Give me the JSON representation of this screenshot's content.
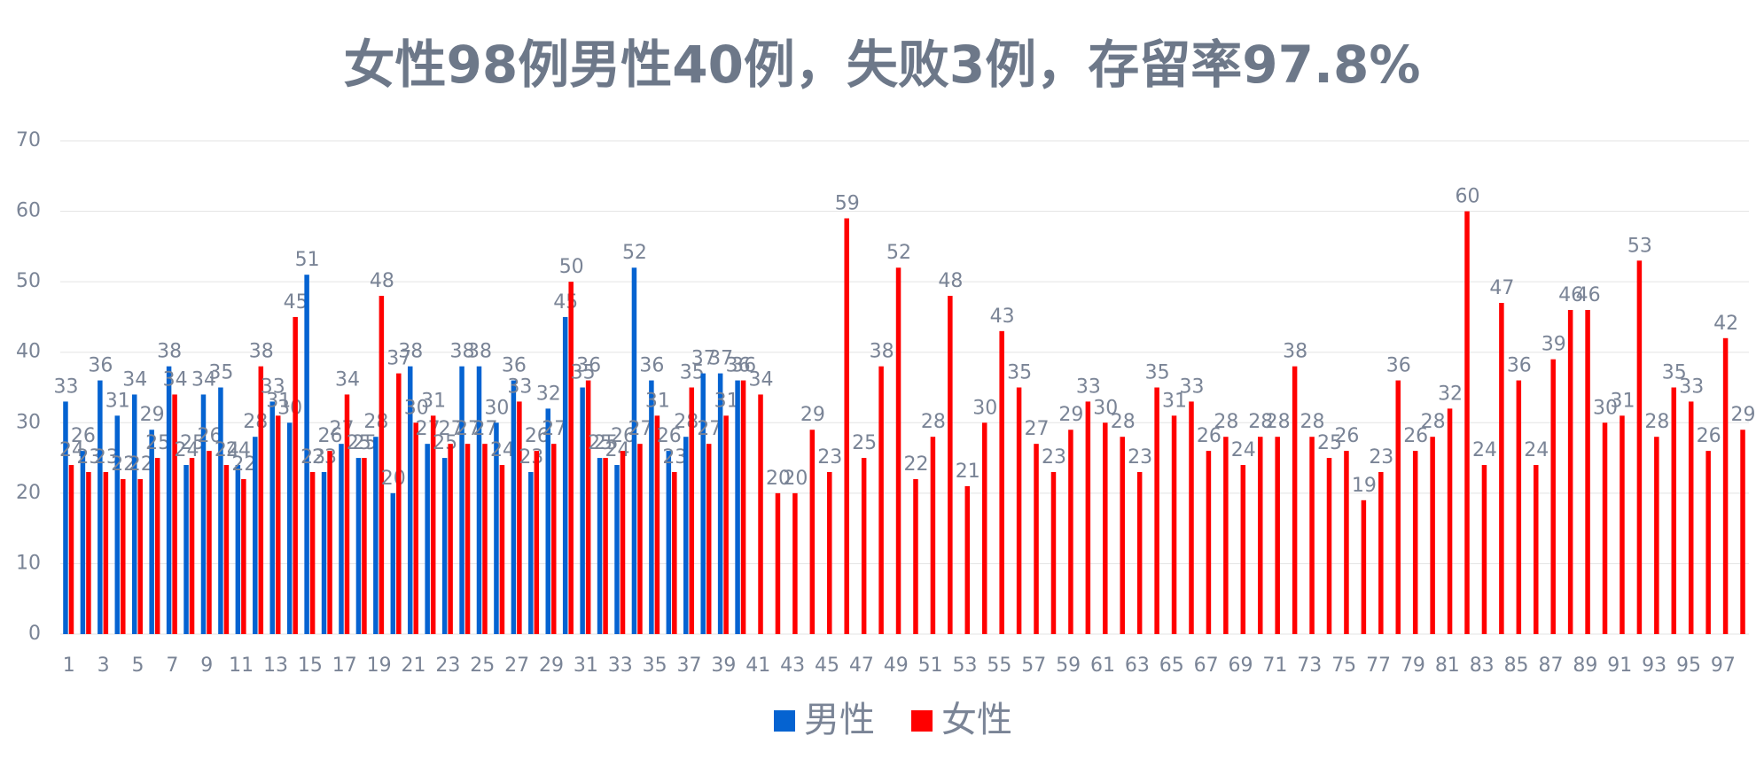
{
  "chart_data": {
    "type": "bar",
    "title": "女性98例男性40例，失败3例，存留率97.8%",
    "categories": [
      1,
      null,
      3,
      null,
      5,
      null,
      7,
      null,
      9,
      null,
      11,
      null,
      13,
      null,
      15,
      null,
      17,
      null,
      19,
      null,
      21,
      null,
      23,
      null,
      25,
      null,
      27,
      null,
      29,
      null,
      31,
      null,
      33,
      null,
      35,
      null,
      37,
      null,
      39,
      null,
      41,
      null,
      43,
      null,
      45,
      null,
      47,
      null,
      49,
      null,
      51,
      null,
      53,
      null,
      55,
      null,
      57,
      null,
      59,
      null,
      61,
      null,
      63,
      null,
      65,
      null,
      67,
      null,
      69,
      null,
      71,
      null,
      73,
      null,
      75,
      null,
      77,
      null,
      79,
      null,
      81,
      null,
      83,
      null,
      85,
      null,
      87,
      null,
      89,
      null,
      91,
      null,
      93,
      null,
      95,
      null,
      97,
      null
    ],
    "series": [
      {
        "name": "男性",
        "color": "#0563d1",
        "values": [
          33,
          26,
          36,
          31,
          34,
          29,
          38,
          24,
          34,
          35,
          24,
          28,
          33,
          30,
          51,
          23,
          27,
          25,
          28,
          20,
          38,
          27,
          25,
          38,
          38,
          30,
          36,
          23,
          32,
          45,
          35,
          25,
          24,
          52,
          36,
          26,
          28,
          37,
          37,
          36,
          null,
          null,
          null,
          null,
          null,
          null,
          null,
          null,
          null,
          null,
          null,
          null,
          null,
          null,
          null,
          null,
          null,
          null,
          null,
          null,
          null,
          null,
          null,
          null,
          null,
          null,
          null,
          null,
          null,
          null,
          null,
          null,
          null,
          null,
          null,
          null,
          null,
          null,
          null,
          null,
          null,
          null,
          null,
          null,
          null,
          null,
          null,
          null,
          null,
          null,
          null,
          null,
          null,
          null,
          null,
          null,
          null,
          null
        ]
      },
      {
        "name": "女性",
        "color": "#ff0000",
        "values": [
          24,
          23,
          23,
          22,
          22,
          25,
          34,
          25,
          26,
          24,
          22,
          38,
          31,
          45,
          23,
          26,
          34,
          25,
          48,
          37,
          30,
          31,
          27,
          27,
          27,
          24,
          33,
          26,
          27,
          50,
          36,
          25,
          26,
          27,
          31,
          23,
          35,
          27,
          31,
          36,
          34,
          20,
          20,
          29,
          23,
          59,
          25,
          38,
          52,
          22,
          28,
          48,
          21,
          30,
          43,
          35,
          27,
          23,
          29,
          33,
          30,
          28,
          23,
          35,
          31,
          33,
          26,
          28,
          24,
          28,
          28,
          38,
          28,
          25,
          26,
          19,
          23,
          36,
          26,
          28,
          32,
          60,
          24,
          47,
          36,
          24,
          39,
          46,
          46,
          30,
          31,
          53,
          28,
          35,
          33,
          26,
          42,
          29
        ]
      }
    ],
    "ylim": [
      0,
      70
    ],
    "yticks": [
      0,
      10,
      20,
      30,
      40,
      50,
      60,
      70
    ],
    "grid": true,
    "legend": "bottom"
  }
}
